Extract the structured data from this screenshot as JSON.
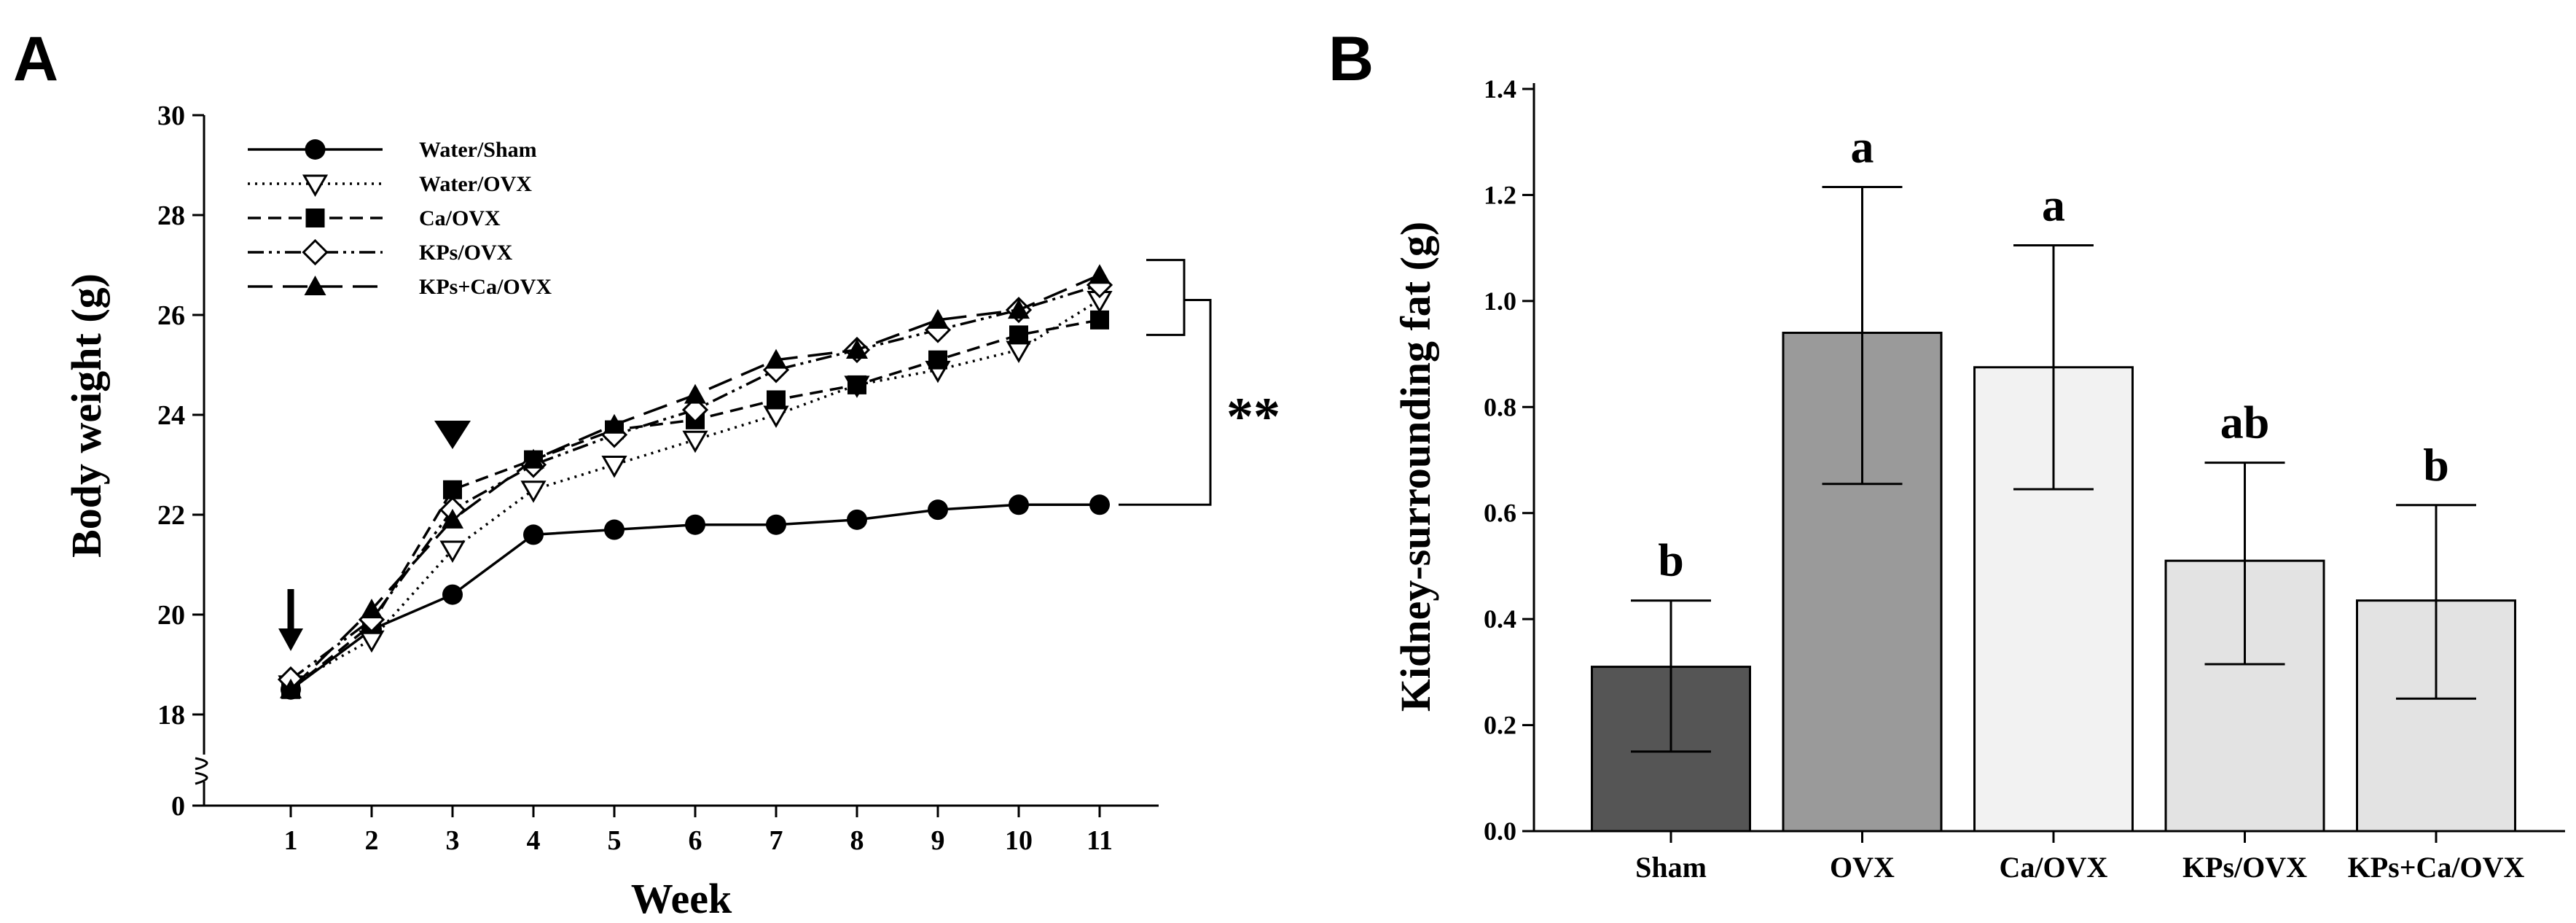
{
  "panels": {
    "a": {
      "letter": "A"
    },
    "b": {
      "letter": "B"
    }
  },
  "chart_data": [
    {
      "type": "line",
      "panel": "A",
      "title": "",
      "xlabel": "Week",
      "ylabel": "Body weight (g)",
      "x": [
        1,
        2,
        3,
        4,
        5,
        6,
        7,
        8,
        9,
        10,
        11
      ],
      "x_ticks": [
        "1",
        "2",
        "3",
        "4",
        "5",
        "6",
        "7",
        "8",
        "9",
        "10",
        "11"
      ],
      "xlim": [
        0,
        12
      ],
      "ylim": [
        17,
        30
      ],
      "y_ticks": [
        18,
        20,
        22,
        24,
        26,
        28,
        30
      ],
      "y_tick_labels": [
        "18",
        "20",
        "22",
        "24",
        "26",
        "28",
        "30"
      ],
      "y_break": true,
      "y_zero_label": "0",
      "series": [
        {
          "name": "Water/Sham",
          "marker": "circle-filled",
          "line": "solid",
          "values": [
            18.5,
            19.7,
            20.4,
            21.6,
            21.7,
            21.8,
            21.8,
            21.9,
            22.1,
            22.2,
            22.2
          ]
        },
        {
          "name": "Water/OVX",
          "marker": "triangle-down-open",
          "line": "dotted",
          "values": [
            18.6,
            19.5,
            21.3,
            22.5,
            23.0,
            23.5,
            24.0,
            24.6,
            24.9,
            25.3,
            26.3
          ]
        },
        {
          "name": "Ca/OVX",
          "marker": "square-filled",
          "line": "dashed",
          "values": [
            18.5,
            19.8,
            22.5,
            23.1,
            23.7,
            23.9,
            24.3,
            24.6,
            25.1,
            25.6,
            25.9
          ]
        },
        {
          "name": "KPs/OVX",
          "marker": "diamond-open",
          "line": "dash-dot-dot",
          "values": [
            18.7,
            19.9,
            22.1,
            23.0,
            23.6,
            24.1,
            24.9,
            25.3,
            25.7,
            26.1,
            26.6
          ]
        },
        {
          "name": "KPs+Ca/OVX",
          "marker": "triangle-up-filled",
          "line": "long-dash",
          "values": [
            18.5,
            20.1,
            21.9,
            23.1,
            23.8,
            24.4,
            25.1,
            25.3,
            25.9,
            26.1,
            26.8
          ]
        }
      ],
      "annotations": [
        {
          "type": "arrow-down",
          "at_week": 1,
          "y": 19.3
        },
        {
          "type": "triangle-down",
          "at_week": 3,
          "y": 23.7
        },
        {
          "type": "significance-bracket",
          "label": "**",
          "y_top": 26.3,
          "y_bottom": 22.2
        }
      ],
      "legend_position": "top-left"
    },
    {
      "type": "bar",
      "panel": "B",
      "title": "",
      "xlabel": "",
      "ylabel": "Kidney-surrounding fat (g)",
      "categories": [
        "Sham",
        "OVX",
        "Ca/OVX",
        "KPs/OVX",
        "KPs+Ca/OVX"
      ],
      "values": [
        0.31,
        0.94,
        0.875,
        0.51,
        0.435
      ],
      "error_low": [
        0.15,
        0.655,
        0.645,
        0.315,
        0.25
      ],
      "error_high": [
        0.435,
        1.215,
        1.105,
        0.695,
        0.615
      ],
      "sig_letters": [
        "b",
        "a",
        "a",
        "ab",
        "b"
      ],
      "bar_colors": [
        "#555555",
        "#9a9a9a",
        "#f2f2f2",
        "#e3e3e3",
        "#e3e3e3"
      ],
      "ylim": [
        0,
        1.4
      ],
      "y_ticks": [
        0.0,
        0.2,
        0.4,
        0.6,
        0.8,
        1.0,
        1.2,
        1.4
      ],
      "y_tick_labels": [
        "0.0",
        "0.2",
        "0.4",
        "0.6",
        "0.8",
        "1.0",
        "1.2",
        "1.4"
      ]
    }
  ]
}
